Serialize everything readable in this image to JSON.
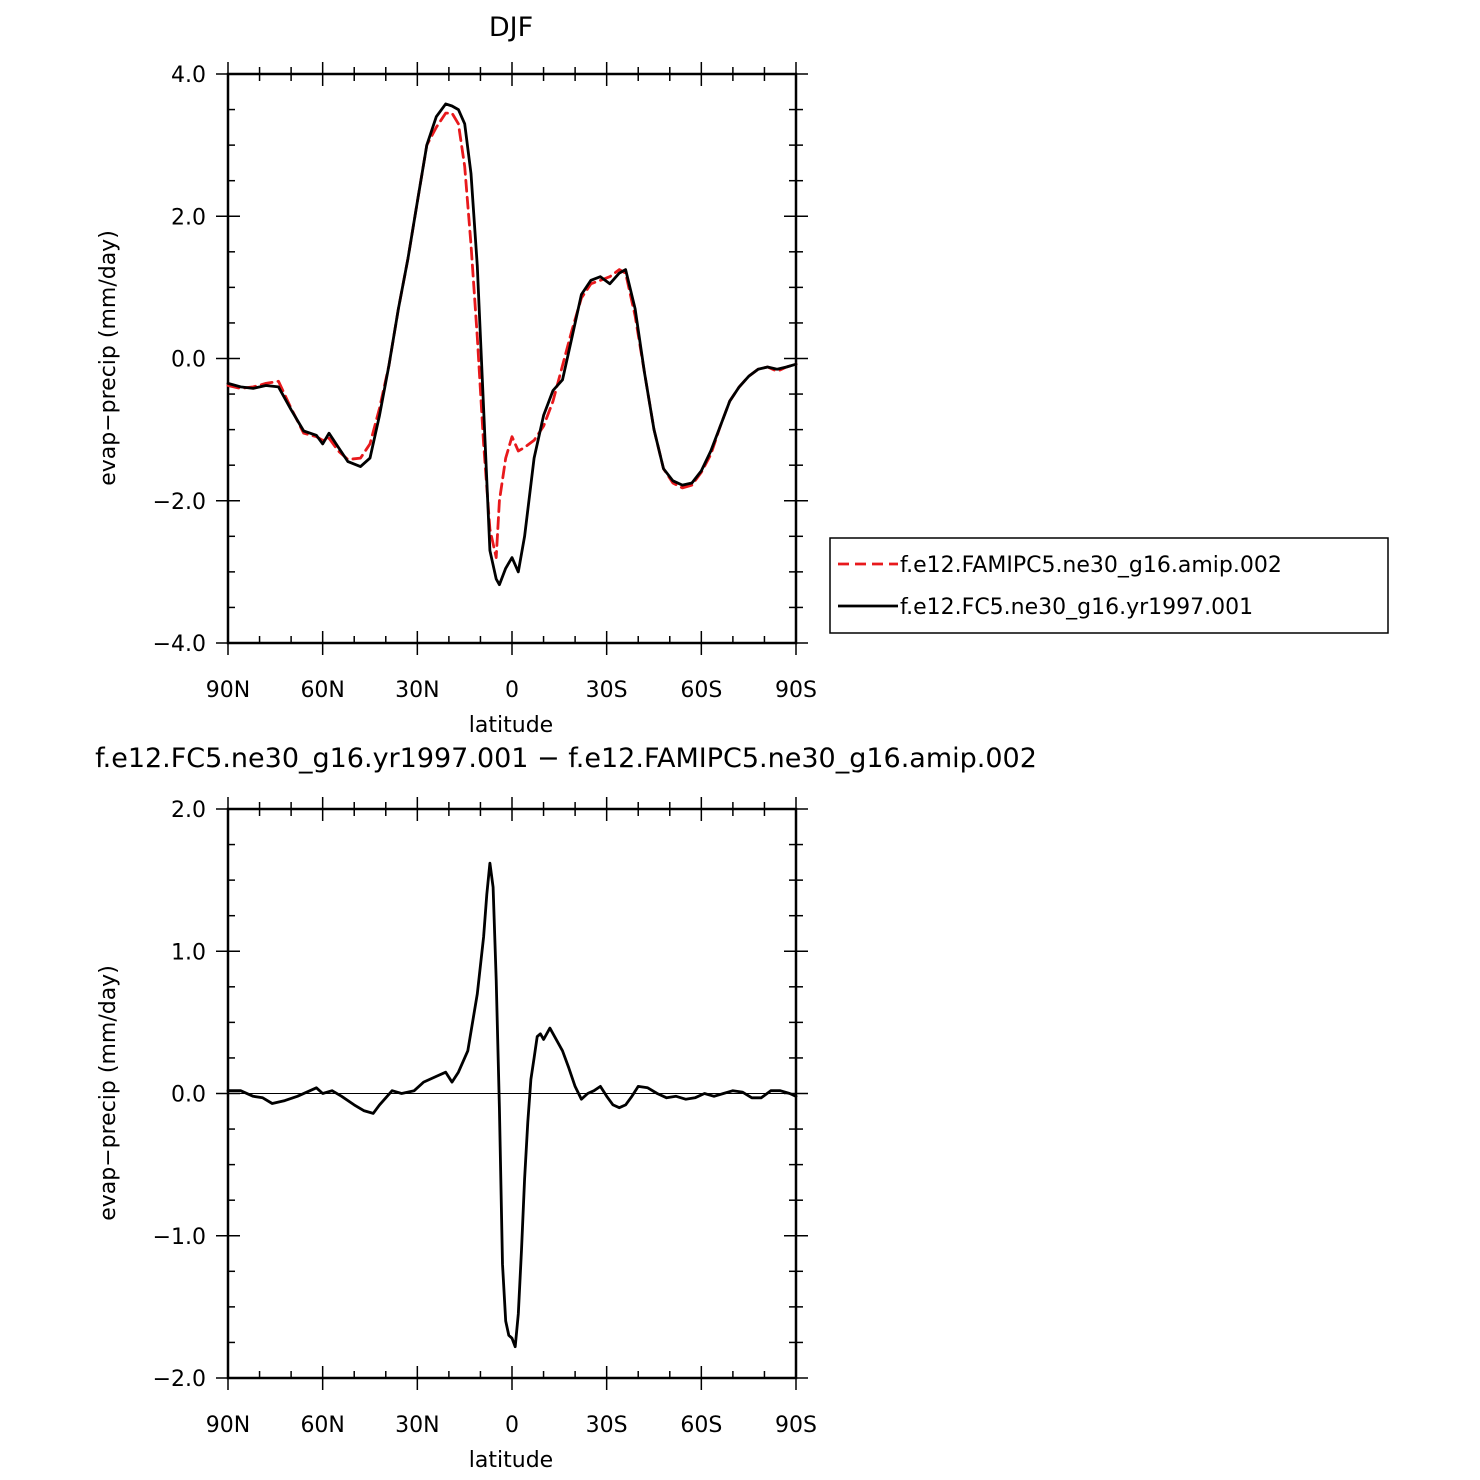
{
  "chart_data": [
    {
      "type": "line",
      "title": "DJF",
      "xlabel": "latitude",
      "ylabel": "evap−precip (mm/day)",
      "x_axis_direction": "north-to-south",
      "xlim": [
        90,
        -90
      ],
      "ylim": [
        -4.0,
        4.0
      ],
      "xticks": [
        90,
        60,
        30,
        0,
        -30,
        -60,
        -90
      ],
      "xtick_labels": [
        "90N",
        "60N",
        "30N",
        "0",
        "30S",
        "60S",
        "90S"
      ],
      "yticks": [
        -4,
        -2,
        0,
        2,
        4
      ],
      "ytick_labels": [
        "−4.0",
        "−2.0",
        "0.0",
        "2.0",
        "4.0"
      ],
      "grid": false,
      "legend_position": "right",
      "series": [
        {
          "name": "f.e12.FAMIPC5.ne30_g16.amip.002",
          "color": "#e8191c",
          "dash": "dashed",
          "x": [
            90,
            86,
            82,
            78,
            74,
            70,
            66,
            62,
            60,
            58,
            55,
            52,
            48,
            45,
            42,
            39,
            36,
            33,
            30,
            27,
            24,
            21,
            19,
            17,
            15,
            13,
            11,
            9,
            7,
            5,
            4,
            2,
            0,
            -2,
            -4,
            -7,
            -10,
            -13,
            -16,
            -19,
            -22,
            -25,
            -28,
            -31,
            -34,
            -36,
            -39,
            -42,
            -45,
            -48,
            -51,
            -54,
            -57,
            -60,
            -63,
            -66,
            -69,
            -72,
            -75,
            -78,
            -81,
            -84,
            -87,
            -90
          ],
          "y": [
            -0.38,
            -0.42,
            -0.4,
            -0.35,
            -0.32,
            -0.7,
            -1.05,
            -1.1,
            -1.15,
            -1.12,
            -1.3,
            -1.42,
            -1.4,
            -1.2,
            -0.7,
            -0.1,
            0.7,
            1.4,
            2.2,
            3.0,
            3.25,
            3.45,
            3.45,
            3.3,
            2.7,
            1.6,
            0.3,
            -1.2,
            -2.4,
            -2.8,
            -2.0,
            -1.4,
            -1.1,
            -1.3,
            -1.25,
            -1.15,
            -0.95,
            -0.6,
            -0.1,
            0.4,
            0.85,
            1.05,
            1.1,
            1.15,
            1.25,
            1.2,
            0.6,
            -0.2,
            -1.0,
            -1.55,
            -1.75,
            -1.82,
            -1.78,
            -1.6,
            -1.35,
            -0.95,
            -0.6,
            -0.4,
            -0.25,
            -0.15,
            -0.12,
            -0.18,
            -0.12,
            -0.08
          ]
        },
        {
          "name": "f.e12.FC5.ne30_g16.yr1997.001",
          "color": "#000000",
          "dash": "solid",
          "x": [
            90,
            86,
            82,
            78,
            74,
            70,
            66,
            62,
            60,
            58,
            55,
            52,
            48,
            45,
            42,
            39,
            36,
            33,
            30,
            27,
            24,
            21,
            19,
            17,
            15,
            13,
            11,
            9,
            7,
            5,
            4,
            2,
            0,
            -2,
            -4,
            -7,
            -10,
            -13,
            -16,
            -19,
            -22,
            -25,
            -28,
            -31,
            -34,
            -36,
            -39,
            -42,
            -45,
            -48,
            -51,
            -54,
            -57,
            -60,
            -63,
            -66,
            -69,
            -72,
            -75,
            -78,
            -81,
            -84,
            -87,
            -90
          ],
          "y": [
            -0.35,
            -0.4,
            -0.42,
            -0.38,
            -0.4,
            -0.72,
            -1.02,
            -1.08,
            -1.2,
            -1.05,
            -1.25,
            -1.45,
            -1.52,
            -1.4,
            -0.8,
            -0.1,
            0.7,
            1.4,
            2.2,
            3.0,
            3.4,
            3.58,
            3.55,
            3.5,
            3.3,
            2.6,
            1.3,
            -0.7,
            -2.7,
            -3.1,
            -3.18,
            -2.95,
            -2.8,
            -3.0,
            -2.5,
            -1.4,
            -0.8,
            -0.45,
            -0.3,
            0.3,
            0.9,
            1.1,
            1.15,
            1.05,
            1.2,
            1.25,
            0.7,
            -0.2,
            -1.0,
            -1.55,
            -1.72,
            -1.78,
            -1.75,
            -1.58,
            -1.3,
            -0.95,
            -0.6,
            -0.4,
            -0.25,
            -0.15,
            -0.12,
            -0.15,
            -0.12,
            -0.08
          ]
        }
      ]
    },
    {
      "type": "line",
      "title": "f.e12.FC5.ne30_g16.yr1997.001 − f.e12.FAMIPC5.ne30_g16.amip.002",
      "xlabel": "latitude",
      "ylabel": "evap−precip (mm/day)",
      "x_axis_direction": "north-to-south",
      "xlim": [
        90,
        -90
      ],
      "ylim": [
        -2.0,
        2.0
      ],
      "xticks": [
        90,
        60,
        30,
        0,
        -30,
        -60,
        -90
      ],
      "xtick_labels": [
        "90N",
        "60N",
        "30N",
        "0",
        "30S",
        "60S",
        "90S"
      ],
      "yticks": [
        -2,
        -1,
        0,
        1,
        2
      ],
      "ytick_labels": [
        "−2.0",
        "−1.0",
        "0.0",
        "1.0",
        "2.0"
      ],
      "grid": false,
      "series": [
        {
          "color": "#000000",
          "dash": "solid",
          "x": [
            90,
            86,
            82,
            79,
            76,
            72,
            68,
            64,
            62,
            60,
            57,
            54,
            50,
            47,
            44,
            42,
            38,
            35,
            31,
            28,
            24,
            21,
            19,
            17,
            14,
            11,
            9,
            8,
            7,
            6,
            5,
            4,
            3,
            2,
            1,
            0,
            -1,
            -2,
            -3,
            -4,
            -5,
            -6,
            -7,
            -8,
            -9,
            -10,
            -12,
            -14,
            -16,
            -18,
            -20,
            -22,
            -24,
            -26,
            -28,
            -30,
            -32,
            -34,
            -36,
            -38,
            -40,
            -43,
            -46,
            -49,
            -52,
            -55,
            -58,
            -61,
            -64,
            -67,
            -70,
            -73,
            -76,
            -79,
            -82,
            -85,
            -88,
            -90
          ],
          "y": [
            0.02,
            0.02,
            -0.02,
            -0.03,
            -0.07,
            -0.05,
            -0.02,
            0.02,
            0.04,
            0.0,
            0.02,
            -0.02,
            -0.08,
            -0.12,
            -0.14,
            -0.08,
            0.02,
            0.0,
            0.02,
            0.08,
            0.12,
            0.15,
            0.08,
            0.15,
            0.3,
            0.7,
            1.1,
            1.4,
            1.62,
            1.45,
            0.8,
            -0.1,
            -1.2,
            -1.6,
            -1.7,
            -1.72,
            -1.78,
            -1.55,
            -1.1,
            -0.6,
            -0.2,
            0.1,
            0.25,
            0.4,
            0.42,
            0.38,
            0.46,
            0.38,
            0.3,
            0.18,
            0.05,
            -0.04,
            0.0,
            0.02,
            0.05,
            -0.02,
            -0.08,
            -0.1,
            -0.08,
            -0.02,
            0.05,
            0.04,
            0.0,
            -0.03,
            -0.02,
            -0.04,
            -0.03,
            0.0,
            -0.02,
            0.0,
            0.02,
            0.01,
            -0.03,
            -0.03,
            0.02,
            0.02,
            0.0,
            -0.02
          ]
        }
      ]
    }
  ]
}
